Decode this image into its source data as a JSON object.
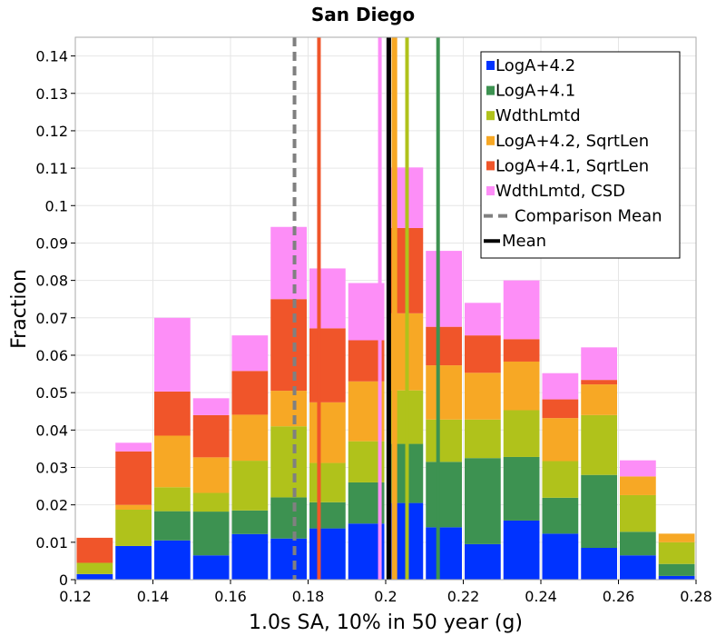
{
  "chart_data": {
    "type": "bar",
    "stacked": true,
    "title": "San Diego",
    "xlabel": "1.0s SA, 10% in 50 year (g)",
    "ylabel": "Fraction",
    "xlim": [
      0.12,
      0.28
    ],
    "ylim": [
      0,
      0.145
    ],
    "grid": true,
    "legend_position": "top-right",
    "x_ticks": [
      0.12,
      0.14,
      0.16,
      0.18,
      0.2,
      0.22,
      0.24,
      0.26,
      0.28
    ],
    "x_tick_labels": [
      "0.12",
      "0.14",
      "0.16",
      "0.18",
      "0.2",
      "0.22",
      "0.24",
      "0.26",
      "0.28"
    ],
    "y_ticks": [
      0,
      0.01,
      0.02,
      0.03,
      0.04,
      0.05,
      0.06,
      0.07,
      0.08,
      0.09,
      0.1,
      0.11,
      0.12,
      0.13,
      0.14
    ],
    "y_tick_labels": [
      "0",
      "0.01",
      "0.02",
      "0.03",
      "0.04",
      "0.05",
      "0.06",
      "0.07",
      "0.08",
      "0.09",
      "0.1",
      "0.11",
      "0.12",
      "0.13",
      "0.14"
    ],
    "bin_width": 0.01,
    "bin_starts": [
      0.12,
      0.13,
      0.14,
      0.15,
      0.16,
      0.17,
      0.18,
      0.19,
      0.2,
      0.21,
      0.22,
      0.23,
      0.24,
      0.25,
      0.26,
      0.27
    ],
    "series": [
      {
        "name": "LogA+4.2",
        "color": "#0033ff",
        "values": [
          0.0015,
          0.009,
          0.0105,
          0.0065,
          0.0122,
          0.011,
          0.0137,
          0.015,
          0.0205,
          0.014,
          0.0095,
          0.0158,
          0.0123,
          0.0085,
          0.0065,
          0.001
        ]
      },
      {
        "name": "LogA+4.1",
        "color": "#3d9251",
        "values": [
          0,
          0,
          0.0078,
          0.0117,
          0.0063,
          0.011,
          0.007,
          0.011,
          0.0158,
          0.0175,
          0.023,
          0.017,
          0.0096,
          0.0195,
          0.0063,
          0.0032
        ]
      },
      {
        "name": "WdthLmtd",
        "color": "#b0c21b",
        "values": [
          0.003,
          0.0097,
          0.0064,
          0.005,
          0.0133,
          0.019,
          0.0105,
          0.011,
          0.0143,
          0.0113,
          0.0103,
          0.0125,
          0.0098,
          0.016,
          0.0098,
          0.0058
        ]
      },
      {
        "name": "LogA+4.2, SqrtLen",
        "color": "#f7a825",
        "values": [
          0,
          0.0013,
          0.0138,
          0.0095,
          0.0123,
          0.0095,
          0.0162,
          0.016,
          0.0206,
          0.0145,
          0.0125,
          0.013,
          0.0115,
          0.0082,
          0.005,
          0.0023
        ]
      },
      {
        "name": "LogA+4.1, SqrtLen",
        "color": "#f0552a",
        "values": [
          0.0067,
          0.0143,
          0.0118,
          0.0113,
          0.0117,
          0.0245,
          0.0198,
          0.011,
          0.0228,
          0.0103,
          0.01,
          0.006,
          0.005,
          0.0012,
          0,
          0
        ]
      },
      {
        "name": "WdthLmtd, CSD",
        "color": "#fd8ef7",
        "values": [
          0,
          0.0023,
          0.0197,
          0.0045,
          0.0095,
          0.0193,
          0.016,
          0.0153,
          0.0162,
          0.0203,
          0.0087,
          0.0157,
          0.007,
          0.0087,
          0.0043,
          0
        ]
      }
    ],
    "vertical_lines": [
      {
        "name": "LogA+4.2",
        "x": 0.2025,
        "color": "#f7a825",
        "style": "solid"
      },
      {
        "name": "LogA+4.1",
        "x": 0.2135,
        "color": "#3d9251",
        "style": "solid"
      },
      {
        "name": "WdthLmtd",
        "x": 0.2055,
        "color": "#b0c21b",
        "style": "solid"
      },
      {
        "name": "LogA+4.2, SqrtLen",
        "x": 0.202,
        "color": "#f7a825",
        "style": "solid"
      },
      {
        "name": "LogA+4.1, SqrtLen",
        "x": 0.1828,
        "color": "#f0552a",
        "style": "solid"
      },
      {
        "name": "WdthLmtd, CSD",
        "x": 0.1985,
        "color": "#fd8ef7",
        "style": "solid"
      },
      {
        "name": "Comparison Mean",
        "x": 0.1765,
        "color": "#808080",
        "style": "dashed"
      },
      {
        "name": "Mean",
        "x": 0.2008,
        "color": "#000000",
        "style": "solid-thick"
      }
    ],
    "legend": [
      {
        "label": "LogA+4.2",
        "color": "#0033ff",
        "kind": "box"
      },
      {
        "label": "LogA+4.1",
        "color": "#3d9251",
        "kind": "box"
      },
      {
        "label": "WdthLmtd",
        "color": "#b0c21b",
        "kind": "box"
      },
      {
        "label": "LogA+4.2, SqrtLen",
        "color": "#f7a825",
        "kind": "box"
      },
      {
        "label": "LogA+4.1, SqrtLen",
        "color": "#f0552a",
        "kind": "box"
      },
      {
        "label": "WdthLmtd, CSD",
        "color": "#fd8ef7",
        "kind": "box"
      },
      {
        "label": "Comparison Mean",
        "color": "#808080",
        "kind": "dashed"
      },
      {
        "label": "Mean",
        "color": "#000000",
        "kind": "line"
      }
    ]
  }
}
